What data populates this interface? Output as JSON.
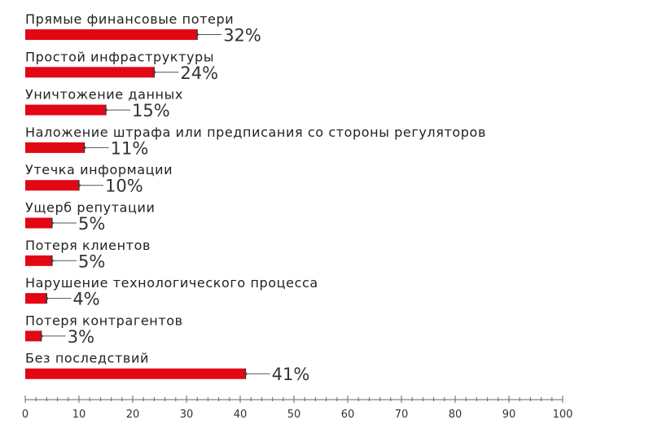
{
  "chart_data": {
    "type": "bar",
    "orientation": "horizontal",
    "categories": [
      "Прямые финансовые потери",
      "Простой инфраструктуры",
      "Уничтожение данных",
      "Наложение штрафа или предписания со стороны регуляторов",
      "Утечка информации",
      "Ущерб репутации",
      "Потеря клиентов",
      "Нарушение технологического процесса",
      "Потеря контрагентов",
      "Без последствий"
    ],
    "values": [
      32,
      24,
      15,
      11,
      10,
      5,
      5,
      4,
      3,
      41
    ],
    "value_labels": [
      "32%",
      "24%",
      "15%",
      "11%",
      "10%",
      "5%",
      "5%",
      "4%",
      "3%",
      "41%"
    ],
    "xlim": [
      0,
      100
    ],
    "x_ticks": [
      0,
      10,
      20,
      30,
      40,
      50,
      60,
      70,
      80,
      90,
      100
    ],
    "x_minor_step": 2,
    "title": "",
    "xlabel": "",
    "ylabel": "",
    "grid": false,
    "colors": {
      "bar": "#e30613",
      "bar_edge": "#333333",
      "leader": "#555555",
      "axis": "#666666",
      "text": "#222222"
    }
  }
}
